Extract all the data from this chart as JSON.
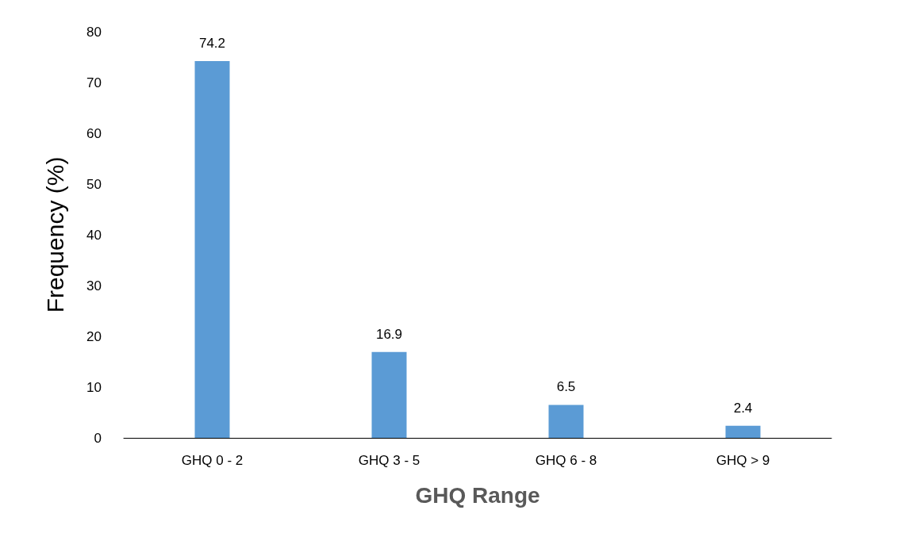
{
  "chart_data": {
    "type": "bar",
    "xlabel": "GHQ Range",
    "ylabel": "Frequency (%)",
    "categories": [
      "GHQ 0 - 2",
      "GHQ 3 - 5",
      "GHQ 6 - 8",
      "GHQ > 9"
    ],
    "values": [
      74.2,
      16.9,
      6.5,
      2.4
    ],
    "color": "#5b9bd5",
    "ylim": [
      0,
      80
    ],
    "yticks": [
      0,
      10,
      20,
      30,
      40,
      50,
      60,
      70,
      80
    ],
    "grid": false,
    "data_labels": true
  }
}
